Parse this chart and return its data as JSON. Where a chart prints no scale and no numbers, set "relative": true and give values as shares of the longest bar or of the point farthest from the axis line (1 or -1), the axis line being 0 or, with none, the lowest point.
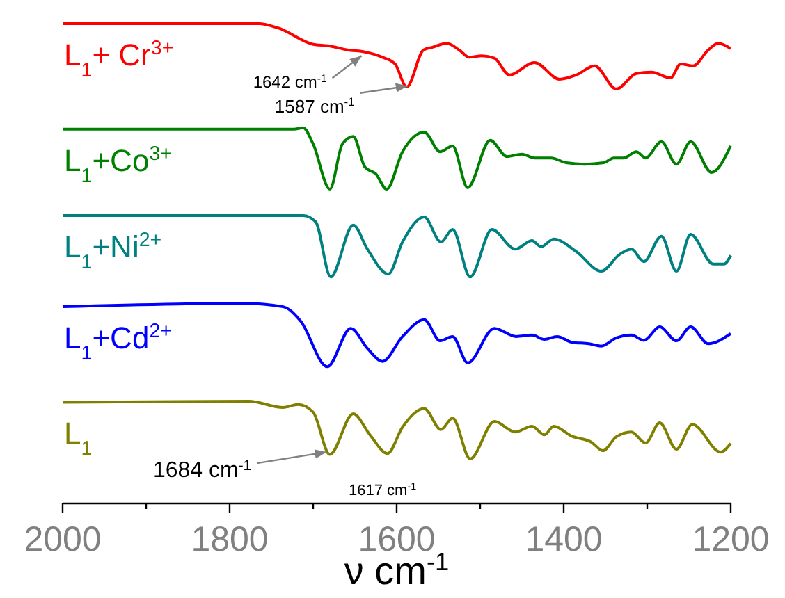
{
  "chart_data": {
    "type": "line",
    "relative": true,
    "xlabel": "ν cm$^{-1}$",
    "xlim": [
      2000,
      1200
    ],
    "xticks": [
      2000,
      {
        "value": 1900,
        "label": null
      },
      1800,
      {
        "value": 1700,
        "label": null
      },
      1600,
      {
        "value": 1500,
        "label": null
      },
      1400,
      {
        "value": 1300,
        "label": null
      },
      1200
    ],
    "legend": false,
    "marker": "none",
    "line_style": "solid",
    "series": [
      {
        "name": "L$_{1}$+ Cr$^{3+}$",
        "color": "#ff0000",
        "x": [
          2000,
          1765,
          1742,
          1700,
          1682,
          1658,
          1638,
          1617,
          1602,
          1588,
          1568,
          1557,
          1540,
          1525,
          1513,
          1498,
          1483,
          1465,
          1435,
          1405,
          1385,
          1363,
          1337,
          1313,
          1295,
          1272,
          1260,
          1245,
          1227,
          1215,
          1200
        ],
        "values": [
          1.0,
          1.0,
          0.991,
          0.957,
          0.954,
          0.945,
          0.941,
          0.93,
          0.916,
          0.868,
          0.945,
          0.951,
          0.959,
          0.945,
          0.93,
          0.933,
          0.928,
          0.893,
          0.919,
          0.884,
          0.893,
          0.912,
          0.864,
          0.896,
          0.899,
          0.887,
          0.916,
          0.912,
          0.945,
          0.959,
          0.948
        ]
      },
      {
        "name": "L$_{1}$+Co$^{3+}$",
        "color": "#008000",
        "x": [
          2000,
          1723,
          1712,
          1700,
          1680,
          1665,
          1652,
          1638,
          1625,
          1612,
          1593,
          1567,
          1548,
          1533,
          1515,
          1488,
          1468,
          1450,
          1435,
          1415,
          1397,
          1375,
          1352,
          1340,
          1328,
          1313,
          1302,
          1283,
          1265,
          1248,
          1223,
          1200
        ],
        "values": [
          0.78,
          0.78,
          0.783,
          0.749,
          0.655,
          0.749,
          0.765,
          0.701,
          0.687,
          0.655,
          0.733,
          0.774,
          0.733,
          0.745,
          0.658,
          0.757,
          0.723,
          0.728,
          0.72,
          0.72,
          0.71,
          0.707,
          0.71,
          0.72,
          0.72,
          0.733,
          0.72,
          0.754,
          0.707,
          0.754,
          0.69,
          0.745
        ]
      },
      {
        "name": "L$_{1}$+Ni$^{2+}$",
        "color": "#008080",
        "x": [
          2000,
          1730,
          1712,
          1697,
          1679,
          1652,
          1635,
          1610,
          1593,
          1567,
          1547,
          1533,
          1512,
          1486,
          1458,
          1438,
          1427,
          1412,
          1385,
          1355,
          1333,
          1319,
          1304,
          1283,
          1265,
          1248,
          1221,
          1208,
          1200
        ],
        "values": [
          0.6,
          0.6,
          0.6,
          0.587,
          0.472,
          0.58,
          0.53,
          0.478,
          0.545,
          0.597,
          0.545,
          0.571,
          0.472,
          0.571,
          0.53,
          0.548,
          0.535,
          0.551,
          0.525,
          0.484,
          0.519,
          0.53,
          0.504,
          0.557,
          0.484,
          0.561,
          0.499,
          0.499,
          0.517
        ]
      },
      {
        "name": "L$_{1}$+Cd$^{2+}$",
        "color": "#0000ff",
        "x": [
          2000,
          1783,
          1736,
          1715,
          1683,
          1655,
          1635,
          1617,
          1593,
          1567,
          1548,
          1533,
          1515,
          1483,
          1457,
          1438,
          1423,
          1408,
          1390,
          1370,
          1355,
          1337,
          1319,
          1304,
          1285,
          1265,
          1248,
          1227,
          1200
        ],
        "values": [
          0.41,
          0.417,
          0.41,
          0.38,
          0.285,
          0.365,
          0.323,
          0.296,
          0.348,
          0.383,
          0.339,
          0.348,
          0.293,
          0.365,
          0.348,
          0.351,
          0.342,
          0.348,
          0.336,
          0.333,
          0.328,
          0.345,
          0.351,
          0.34,
          0.368,
          0.339,
          0.368,
          0.333,
          0.354
        ]
      },
      {
        "name": "L$_{1}$",
        "color": "#808000",
        "x": [
          2000,
          1777,
          1736,
          1718,
          1700,
          1680,
          1652,
          1632,
          1611,
          1593,
          1567,
          1547,
          1533,
          1512,
          1483,
          1458,
          1438,
          1423,
          1412,
          1390,
          1367,
          1353,
          1337,
          1319,
          1302,
          1285,
          1265,
          1246,
          1212,
          1200
        ],
        "values": [
          0.211,
          0.213,
          0.2,
          0.206,
          0.19,
          0.102,
          0.187,
          0.143,
          0.104,
          0.159,
          0.198,
          0.154,
          0.178,
          0.093,
          0.171,
          0.149,
          0.161,
          0.143,
          0.161,
          0.14,
          0.128,
          0.11,
          0.139,
          0.149,
          0.126,
          0.168,
          0.113,
          0.165,
          0.107,
          0.125
        ]
      }
    ],
    "annotations": [
      {
        "text": "1642 cm$^{-1}$",
        "x": 1642,
        "y": 0.933
      },
      {
        "text": "1587 cm$^{-1}$",
        "x": 1587,
        "y": 0.87
      },
      {
        "text": "1684 cm$^{-1}$",
        "x": 1684,
        "y": 0.107
      },
      {
        "text": "1617 cm$^{-1}$",
        "x": 1617,
        "y": 0.104
      }
    ]
  }
}
